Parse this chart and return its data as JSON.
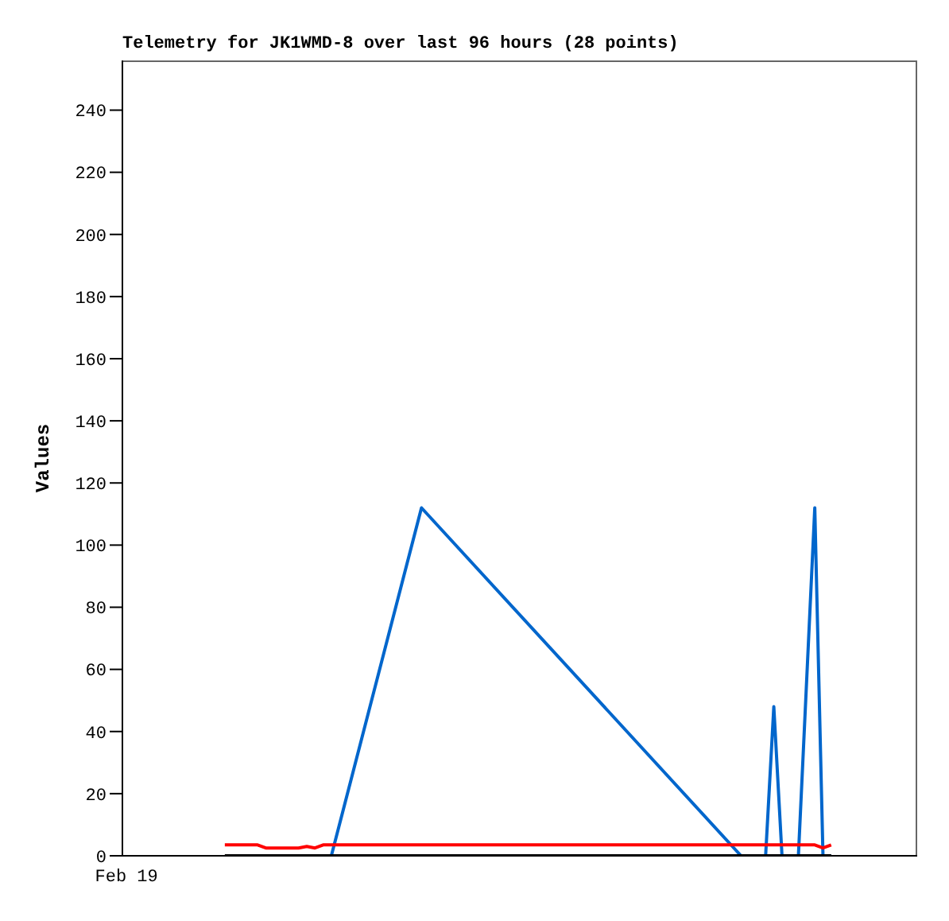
{
  "chart_data": {
    "type": "line",
    "title": "Telemetry for JK1WMD-8 over last 96 hours (28 points)",
    "ylabel": "Values",
    "categories": [
      "Feb 19",
      null,
      null,
      null,
      null,
      null,
      null,
      null,
      null,
      null,
      null,
      null,
      null,
      null,
      null,
      null,
      null,
      null,
      null,
      null,
      null,
      null,
      null,
      null,
      null,
      null,
      null,
      null,
      null,
      null,
      null,
      null,
      null,
      null,
      null,
      null,
      null,
      null,
      null,
      null,
      null,
      null,
      null,
      null,
      null,
      null,
      null,
      null,
      null,
      null,
      null,
      null,
      null,
      null,
      null,
      null,
      null,
      null,
      null,
      null,
      null,
      null,
      null,
      null,
      null,
      null,
      null,
      null,
      null,
      null,
      null,
      null,
      null,
      null,
      null,
      null,
      null,
      null,
      null,
      null,
      null,
      null,
      null,
      null,
      null,
      null,
      null,
      null,
      null,
      null,
      null,
      null,
      null,
      null,
      null,
      null,
      null
    ],
    "ylim": [
      0,
      256
    ],
    "yticks": [
      0,
      20,
      40,
      60,
      80,
      100,
      120,
      140,
      160,
      180,
      200,
      220,
      240
    ],
    "grid": false,
    "legend": false,
    "marker": "none",
    "line_style": "solid",
    "series": [
      {
        "color": "#0066cc",
        "values": [
          null,
          null,
          null,
          null,
          null,
          null,
          null,
          null,
          null,
          null,
          null,
          null,
          null,
          null,
          null,
          null,
          null,
          null,
          null,
          null,
          null,
          null,
          null,
          null,
          null,
          0,
          null,
          null,
          null,
          null,
          null,
          null,
          null,
          null,
          null,
          null,
          112,
          null,
          null,
          null,
          null,
          null,
          null,
          null,
          null,
          null,
          null,
          null,
          null,
          null,
          null,
          null,
          null,
          null,
          null,
          null,
          null,
          null,
          null,
          null,
          null,
          null,
          null,
          null,
          null,
          null,
          null,
          null,
          null,
          null,
          null,
          null,
          null,
          null,
          null,
          0,
          null,
          null,
          0,
          48,
          0,
          null,
          0,
          null,
          112,
          0,
          0,
          null,
          null,
          null,
          null,
          null,
          null,
          null,
          null,
          null,
          null
        ]
      },
      {
        "color": "#ff0000",
        "values": [
          null,
          null,
          null,
          null,
          null,
          null,
          null,
          null,
          null,
          null,
          null,
          null,
          3.5,
          null,
          null,
          null,
          3.5,
          2.5,
          null,
          null,
          null,
          2.5,
          3,
          2.5,
          3.5,
          null,
          null,
          null,
          null,
          null,
          null,
          null,
          null,
          null,
          null,
          null,
          null,
          null,
          null,
          null,
          null,
          null,
          null,
          null,
          null,
          null,
          null,
          null,
          null,
          null,
          null,
          null,
          null,
          null,
          null,
          null,
          null,
          null,
          null,
          null,
          null,
          null,
          null,
          null,
          null,
          null,
          null,
          null,
          null,
          null,
          null,
          null,
          null,
          null,
          null,
          null,
          null,
          null,
          null,
          null,
          null,
          null,
          null,
          null,
          3.5,
          2.5,
          3.5,
          null,
          null,
          null,
          null,
          null,
          null,
          null,
          null,
          null,
          null
        ]
      },
      {
        "color": "#000000",
        "values": [
          null,
          null,
          null,
          null,
          null,
          null,
          null,
          null,
          null,
          null,
          null,
          null,
          0,
          null,
          null,
          null,
          null,
          null,
          null,
          null,
          null,
          null,
          null,
          null,
          null,
          null,
          null,
          null,
          null,
          null,
          null,
          null,
          null,
          null,
          null,
          null,
          null,
          null,
          null,
          null,
          null,
          null,
          null,
          null,
          null,
          null,
          null,
          null,
          null,
          null,
          null,
          null,
          null,
          null,
          null,
          null,
          null,
          null,
          null,
          null,
          null,
          null,
          null,
          null,
          null,
          null,
          null,
          null,
          null,
          null,
          null,
          null,
          null,
          null,
          null,
          null,
          null,
          null,
          null,
          null,
          null,
          null,
          null,
          null,
          null,
          null,
          0,
          null,
          null,
          null,
          null,
          null,
          null,
          null,
          null,
          null,
          null
        ]
      }
    ]
  }
}
